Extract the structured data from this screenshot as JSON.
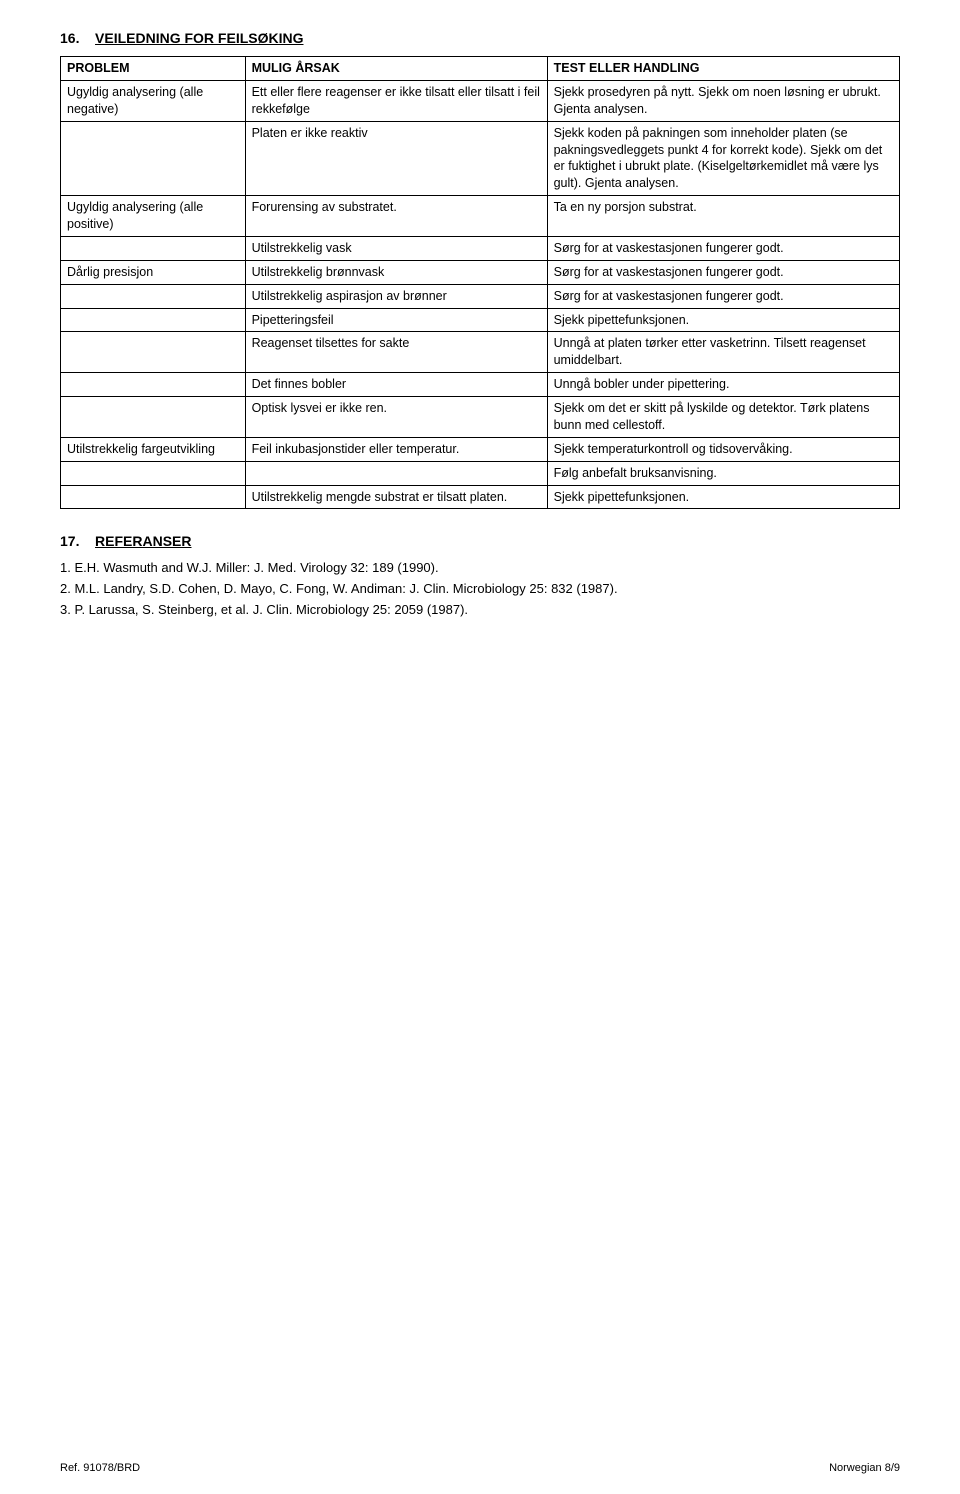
{
  "section16": {
    "num": "16.",
    "title": "VEILEDNING FOR FEILSØKING",
    "headers": {
      "c0": "PROBLEM",
      "c1": "MULIG ÅRSAK",
      "c2": "TEST ELLER HANDLING"
    },
    "rows": [
      {
        "c0": "Ugyldig analysering (alle negative)",
        "c1": "Ett eller flere reagenser er ikke tilsatt eller tilsatt i feil rekkefølge",
        "c2": "Sjekk prosedyren på nytt. Sjekk om noen løsning er ubrukt. Gjenta analysen."
      },
      {
        "c0": "",
        "c1": "Platen er ikke reaktiv",
        "c2": "Sjekk koden på pakningen som inneholder platen (se pakningsvedleggets punkt 4 for korrekt kode). Sjekk om det er fuktighet i ubrukt plate. (Kiselgeltørkemidlet må være lys gult). Gjenta analysen."
      },
      {
        "c0": "Ugyldig analysering (alle positive)",
        "c1": "Forurensing av substratet.",
        "c2": "Ta en ny porsjon substrat."
      },
      {
        "c0": "",
        "c1": "Utilstrekkelig vask",
        "c2": "Sørg for at vaskestasjonen fungerer godt."
      },
      {
        "c0": "Dårlig presisjon",
        "c1": "Utilstrekkelig brønnvask",
        "c2": "Sørg for at vaskestasjonen fungerer godt."
      },
      {
        "c0": "",
        "c1": "Utilstrekkelig aspirasjon av brønner",
        "c2": "Sørg for at vaskestasjonen fungerer godt."
      },
      {
        "c0": "",
        "c1": "Pipetteringsfeil",
        "c2": "Sjekk pipettefunksjonen."
      },
      {
        "c0": "",
        "c1": "Reagenset tilsettes for sakte",
        "c2": "Unngå at platen tørker etter vasketrinn. Tilsett reagenset umiddelbart."
      },
      {
        "c0": "",
        "c1": "Det finnes bobler",
        "c2": "Unngå bobler under pipettering."
      },
      {
        "c0": "",
        "c1": "Optisk lysvei er ikke ren.",
        "c2": "Sjekk om det er skitt på lyskilde og detektor. Tørk platens bunn med cellestoff."
      },
      {
        "c0": "Utilstrekkelig fargeutvikling",
        "c1": "Feil inkubasjonstider eller temperatur.",
        "c2": "Sjekk temperaturkontroll og tidsovervåking."
      },
      {
        "c0": "",
        "c1": "",
        "c2": "Følg anbefalt bruksanvisning."
      },
      {
        "c0": "",
        "c1": "Utilstrekkelig mengde substrat er tilsatt platen.",
        "c2": "Sjekk pipettefunksjonen."
      }
    ]
  },
  "section17": {
    "num": "17.",
    "title": "REFERANSER",
    "items": [
      "1.   E.H. Wasmuth and W.J. Miller: J. Med. Virology 32: 189 (1990).",
      "2.   M.L. Landry, S.D. Cohen, D. Mayo, C. Fong, W. Andiman: J. Clin. Microbiology 25: 832 (1987).",
      "3.   P. Larussa, S. Steinberg, et al. J. Clin. Microbiology 25: 2059 (1987)."
    ]
  },
  "footer": {
    "left": "Ref. 91078/BRD",
    "right": "Norwegian 8/9"
  }
}
